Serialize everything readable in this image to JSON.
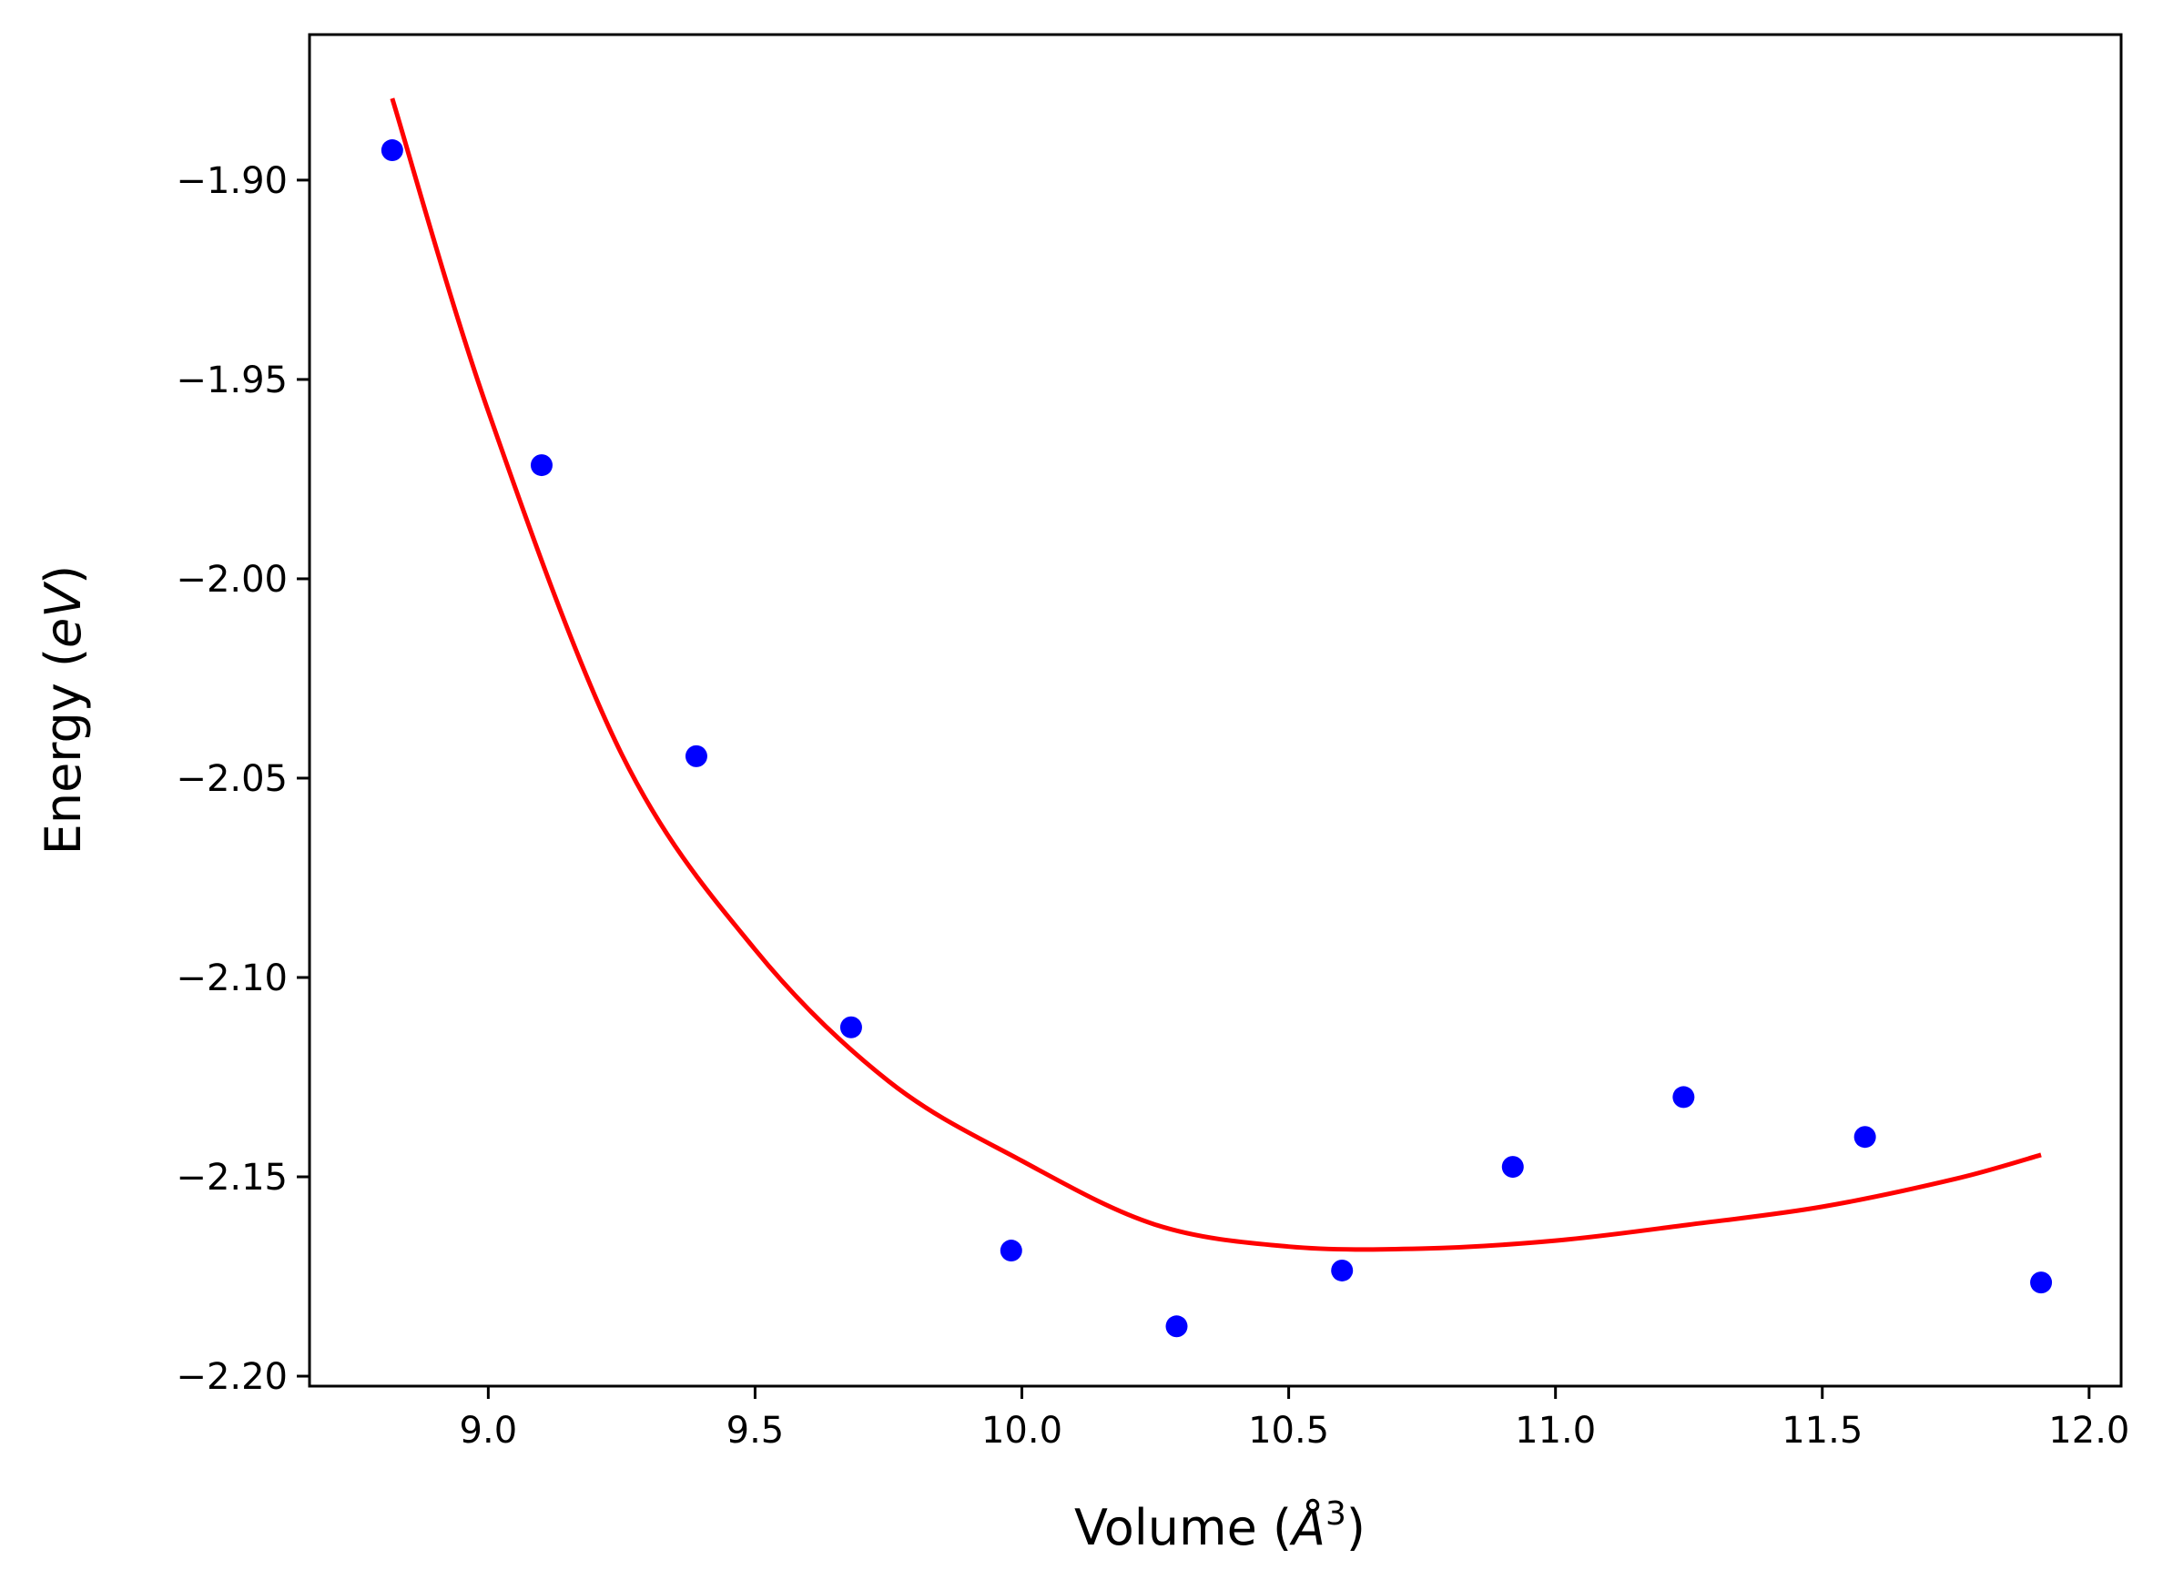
{
  "chart_data": {
    "type": "scatter",
    "xlabel": {
      "main": "Volume (",
      "symbol": "Å",
      "sup": "3",
      "close": ")"
    },
    "ylabel": {
      "main": "Energy (",
      "unit": "eV",
      "close": ")"
    },
    "xlim": [
      8.665,
      12.06
    ],
    "ylim": [
      -2.2025,
      -1.8635
    ],
    "x_ticks": [
      9.0,
      9.5,
      10.0,
      10.5,
      11.0,
      11.5,
      12.0
    ],
    "x_tick_labels": [
      "9.0",
      "9.5",
      "10.0",
      "10.5",
      "11.0",
      "11.5",
      "12.0"
    ],
    "y_ticks": [
      -1.9,
      -1.95,
      -2.0,
      -2.05,
      -2.1,
      -2.15,
      -2.2
    ],
    "y_tick_labels": [
      "−1.90",
      "−1.95",
      "−2.00",
      "−2.05",
      "−2.10",
      "−2.15",
      "−2.20"
    ],
    "grid": false,
    "legend": "none",
    "series": [
      {
        "type": "scatter",
        "color": "#0000ff",
        "x": [
          8.82,
          9.1,
          9.39,
          9.68,
          9.98,
          10.29,
          10.6,
          10.92,
          11.24,
          11.58,
          11.91
        ],
        "y": [
          -1.8925,
          -1.9715,
          -2.0445,
          -2.1125,
          -2.1685,
          -2.1875,
          -2.1735,
          -2.1475,
          -2.13,
          -2.14,
          -2.1765
        ]
      },
      {
        "type": "line",
        "color": "#ff0000",
        "x": [
          8.82,
          9.0,
          9.25,
          9.5,
          9.75,
          10.0,
          10.25,
          10.5,
          10.75,
          11.0,
          11.25,
          11.5,
          11.75,
          11.91
        ],
        "y": [
          -1.8795,
          -1.958,
          -2.044,
          -2.093,
          -2.126,
          -2.146,
          -2.162,
          -2.1675,
          -2.168,
          -2.166,
          -2.162,
          -2.1575,
          -2.1505,
          -2.1445
        ]
      }
    ]
  }
}
